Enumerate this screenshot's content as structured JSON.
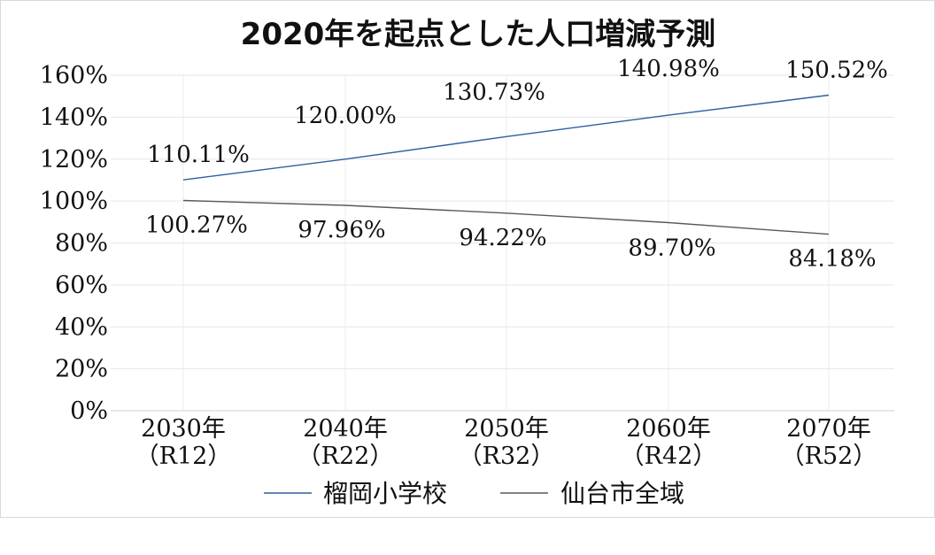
{
  "chart_data": {
    "type": "line",
    "title": "2020年を起点とした人口増減予測",
    "categories": [
      {
        "year": "2030年",
        "era": "（R12）"
      },
      {
        "year": "2040年",
        "era": "（R22）"
      },
      {
        "year": "2050年",
        "era": "（R32）"
      },
      {
        "year": "2060年",
        "era": "（R42）"
      },
      {
        "year": "2070年",
        "era": "（R52）"
      }
    ],
    "ylim": [
      0,
      160
    ],
    "yticks": [
      "0%",
      "20%",
      "40%",
      "60%",
      "80%",
      "100%",
      "120%",
      "140%",
      "160%"
    ],
    "grid": true,
    "legend_position": "bottom",
    "series": [
      {
        "name": "榴岡小学校",
        "color": "#2e5f9e",
        "values": [
          110.11,
          120.0,
          130.73,
          140.98,
          150.52
        ],
        "labels": [
          "110.11%",
          "120.00%",
          "130.73%",
          "140.98%",
          "150.52%"
        ]
      },
      {
        "name": "仙台市全域",
        "color": "#595959",
        "values": [
          100.27,
          97.96,
          94.22,
          89.7,
          84.18
        ],
        "labels": [
          "100.27%",
          "97.96%",
          "94.22%",
          "89.70%",
          "84.18%"
        ]
      }
    ]
  }
}
